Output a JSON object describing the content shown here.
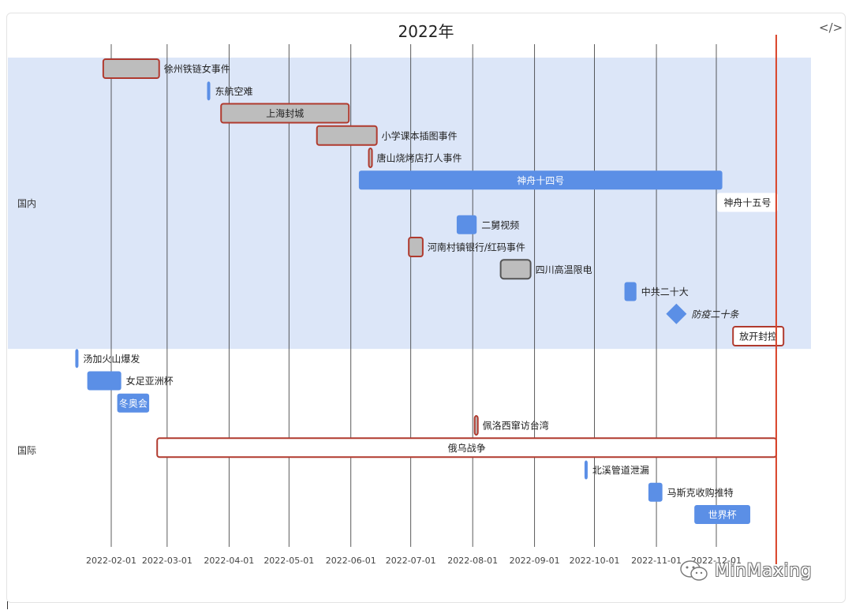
{
  "window": {
    "toolbar_icon": "code-icon"
  },
  "chart_data": {
    "type": "timeline",
    "title": "2022年",
    "x_start": "2022-01-09",
    "x_end": "2022-12-31",
    "ticks": [
      "2022-02-01",
      "2022-03-01",
      "2022-04-01",
      "2022-05-01",
      "2022-06-01",
      "2022-07-01",
      "2022-08-01",
      "2022-09-01",
      "2022-10-01",
      "2022-11-01",
      "2022-12-01"
    ],
    "today_line": "2022-12-31",
    "colors": {
      "domestic_band": "#dce6f8",
      "blue": "#5b8fe6",
      "gray": "#bdbdbd",
      "red": "#b03a2e",
      "today": "#d9442a"
    },
    "categories": [
      {
        "name": "国内",
        "events": [
          {
            "label": "徐州铁链女事件",
            "start": "2022-01-28",
            "end": "2022-02-25",
            "style": "gray-red",
            "label_pos": "right"
          },
          {
            "label": "东航空难",
            "start": "2022-03-21",
            "end": "2022-03-22",
            "style": "blue",
            "label_pos": "right"
          },
          {
            "label": "上海封城",
            "start": "2022-03-28",
            "end": "2022-05-31",
            "style": "gray-red",
            "label_pos": "inside"
          },
          {
            "label": "小学课本插图事件",
            "start": "2022-05-15",
            "end": "2022-06-14",
            "style": "gray-red",
            "label_pos": "right"
          },
          {
            "label": "唐山烧烤店打人事件",
            "start": "2022-06-10",
            "end": "2022-06-11",
            "style": "gray-red",
            "label_pos": "right"
          },
          {
            "label": "神舟十四号",
            "start": "2022-06-05",
            "end": "2022-12-04",
            "style": "blue",
            "label_pos": "inside"
          },
          {
            "label": "神舟十五号",
            "start": "2022-11-29",
            "end": "2022-11-29",
            "style": "label",
            "label_pos": "right"
          },
          {
            "label": "二舅视频",
            "start": "2022-07-24",
            "end": "2022-08-03",
            "style": "blue",
            "label_pos": "right"
          },
          {
            "label": "河南村镇银行/红码事件",
            "start": "2022-06-30",
            "end": "2022-07-07",
            "style": "gray-red",
            "label_pos": "right"
          },
          {
            "label": "四川高温限电",
            "start": "2022-08-15",
            "end": "2022-08-30",
            "style": "gray-dark",
            "label_pos": "right"
          },
          {
            "label": "中共二十大",
            "start": "2022-10-16",
            "end": "2022-10-22",
            "style": "blue",
            "label_pos": "right"
          },
          {
            "label": "防疫二十条",
            "start": "2022-11-11",
            "end": "2022-11-11",
            "style": "milestone",
            "label_pos": "right"
          },
          {
            "label": "放开封控",
            "start": "2022-12-07",
            "end": "2022-12-07",
            "style": "label-red",
            "label_pos": "right"
          }
        ]
      },
      {
        "name": "国际",
        "events": [
          {
            "label": "汤加火山爆发",
            "start": "2022-01-14",
            "end": "2022-01-15",
            "style": "blue",
            "label_pos": "right"
          },
          {
            "label": "女足亚洲杯",
            "start": "2022-01-20",
            "end": "2022-02-06",
            "style": "blue",
            "label_pos": "right"
          },
          {
            "label": "冬奥会",
            "start": "2022-02-04",
            "end": "2022-02-20",
            "style": "blue",
            "label_pos": "inside"
          },
          {
            "label": "佩洛西窜访台湾",
            "start": "2022-08-02",
            "end": "2022-08-03",
            "style": "gray-red",
            "label_pos": "right"
          },
          {
            "label": "俄乌战争",
            "start": "2022-02-24",
            "end": "2022-12-31",
            "style": "white-red",
            "label_pos": "inside"
          },
          {
            "label": "北溪管道泄漏",
            "start": "2022-09-26",
            "end": "2022-09-27",
            "style": "blue",
            "label_pos": "right"
          },
          {
            "label": "马斯克收购推特",
            "start": "2022-10-28",
            "end": "2022-11-04",
            "style": "blue",
            "label_pos": "right"
          },
          {
            "label": "世界杯",
            "start": "2022-11-20",
            "end": "2022-12-18",
            "style": "blue",
            "label_pos": "inside"
          }
        ]
      }
    ]
  },
  "watermark": {
    "text": "MinMaxing",
    "icon": "wechat-icon"
  }
}
